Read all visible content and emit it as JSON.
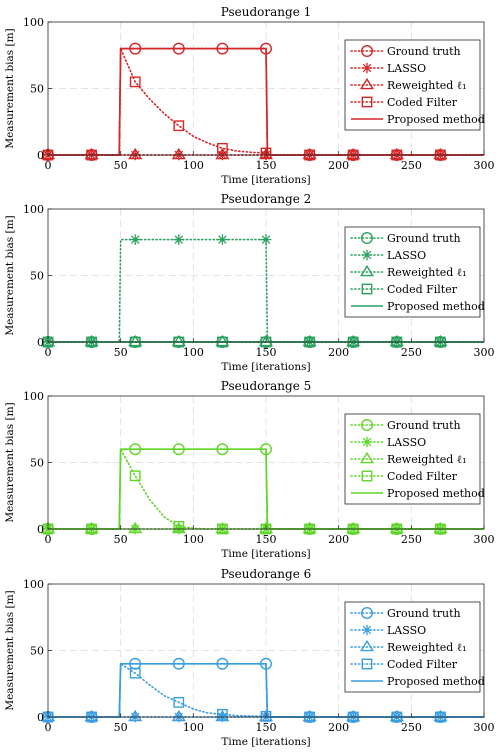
{
  "chart_data": [
    {
      "type": "line",
      "title": "Pseudorange 1",
      "xlabel": "Time [iterations]",
      "ylabel": "Measurement bias [m]",
      "xlim": [
        0,
        300
      ],
      "ylim": [
        0,
        100
      ],
      "xticks": [
        0,
        50,
        100,
        150,
        200,
        250,
        300
      ],
      "yticks": [
        0,
        50,
        100
      ],
      "grid": true,
      "legend_position": "right",
      "color": "#d62728",
      "series": [
        {
          "name": "Ground truth",
          "marker": "circle",
          "style": "dotted",
          "points": [
            [
              0,
              0
            ],
            [
              49,
              0
            ],
            [
              50,
              80
            ],
            [
              150,
              80
            ],
            [
              151,
              0
            ],
            [
              300,
              0
            ]
          ],
          "marker_x": [
            0,
            30,
            60,
            90,
            120,
            150,
            180,
            210,
            240,
            270
          ]
        },
        {
          "name": "LASSO",
          "marker": "asterisk",
          "style": "dotted",
          "points": [
            [
              0,
              0
            ],
            [
              300,
              0
            ]
          ],
          "marker_x": [
            0,
            30,
            60,
            90,
            120,
            150,
            180,
            210,
            240,
            270
          ]
        },
        {
          "name": "Reweighted ℓ₁",
          "marker": "triangle",
          "style": "dotted",
          "points": [
            [
              0,
              0
            ],
            [
              300,
              0
            ]
          ],
          "marker_x": [
            0,
            30,
            60,
            90,
            120,
            150,
            180,
            210,
            240,
            270
          ]
        },
        {
          "name": "Coded Filter",
          "marker": "square",
          "style": "dotted",
          "points": [
            [
              0,
              0
            ],
            [
              49,
              0
            ],
            [
              50,
              80
            ],
            [
              60,
              55
            ],
            [
              70,
              42
            ],
            [
              80,
              31
            ],
            [
              90,
              22
            ],
            [
              100,
              14
            ],
            [
              110,
              9
            ],
            [
              120,
              5
            ],
            [
              130,
              3
            ],
            [
              140,
              2
            ],
            [
              150,
              1.5
            ],
            [
              151,
              0
            ],
            [
              300,
              0
            ]
          ],
          "marker_x": [
            0,
            30,
            60,
            90,
            120,
            150,
            180,
            210,
            240,
            270
          ]
        },
        {
          "name": "Proposed method",
          "marker": "none",
          "style": "solid",
          "points": [
            [
              0,
              0
            ],
            [
              49,
              0
            ],
            [
              50,
              80
            ],
            [
              150,
              80
            ],
            [
              151,
              0
            ],
            [
              300,
              0
            ]
          ],
          "marker_x": []
        }
      ]
    },
    {
      "type": "line",
      "title": "Pseudorange 2",
      "xlabel": "Time [iterations]",
      "ylabel": "Measurement bias [m]",
      "xlim": [
        0,
        300
      ],
      "ylim": [
        0,
        100
      ],
      "xticks": [
        0,
        50,
        100,
        150,
        200,
        250,
        300
      ],
      "yticks": [
        0,
        50,
        100
      ],
      "grid": true,
      "legend_position": "right",
      "color": "#2ca25f",
      "series": [
        {
          "name": "Ground truth",
          "marker": "circle",
          "style": "dotted",
          "points": [
            [
              0,
              0
            ],
            [
              300,
              0
            ]
          ],
          "marker_x": [
            0,
            30,
            60,
            90,
            120,
            150,
            180,
            210,
            240,
            270
          ]
        },
        {
          "name": "LASSO",
          "marker": "asterisk",
          "style": "dotted",
          "points": [
            [
              0,
              0
            ],
            [
              49,
              0
            ],
            [
              50,
              77
            ],
            [
              150,
              77
            ],
            [
              151,
              0
            ],
            [
              300,
              0
            ]
          ],
          "marker_x": [
            0,
            30,
            60,
            90,
            120,
            150,
            180,
            210,
            240,
            270
          ]
        },
        {
          "name": "Reweighted ℓ₁",
          "marker": "triangle",
          "style": "dotted",
          "points": [
            [
              0,
              0
            ],
            [
              300,
              0
            ]
          ],
          "marker_x": [
            0,
            30,
            60,
            90,
            120,
            150,
            180,
            210,
            240,
            270
          ]
        },
        {
          "name": "Coded Filter",
          "marker": "square",
          "style": "dotted",
          "points": [
            [
              0,
              0
            ],
            [
              300,
              0
            ]
          ],
          "marker_x": [
            0,
            30,
            60,
            90,
            120,
            150,
            180,
            210,
            240,
            270
          ]
        },
        {
          "name": "Proposed method",
          "marker": "none",
          "style": "solid",
          "points": [
            [
              0,
              0
            ],
            [
              300,
              0
            ]
          ],
          "marker_x": []
        }
      ]
    },
    {
      "type": "line",
      "title": "Pseudorange 5",
      "xlabel": "Time [iterations]",
      "ylabel": "Measurement bias [m]",
      "xlim": [
        0,
        300
      ],
      "ylim": [
        0,
        100
      ],
      "xticks": [
        0,
        50,
        100,
        150,
        200,
        250,
        300
      ],
      "yticks": [
        0,
        50,
        100
      ],
      "grid": true,
      "legend_position": "right",
      "color": "#5fd629",
      "series": [
        {
          "name": "Ground truth",
          "marker": "circle",
          "style": "dotted",
          "points": [
            [
              0,
              0
            ],
            [
              49,
              0
            ],
            [
              50,
              60
            ],
            [
              150,
              60
            ],
            [
              151,
              0
            ],
            [
              300,
              0
            ]
          ],
          "marker_x": [
            0,
            30,
            60,
            90,
            120,
            150,
            180,
            210,
            240,
            270
          ]
        },
        {
          "name": "LASSO",
          "marker": "asterisk",
          "style": "dotted",
          "points": [
            [
              0,
              0
            ],
            [
              300,
              0
            ]
          ],
          "marker_x": [
            0,
            30,
            60,
            90,
            120,
            150,
            180,
            210,
            240,
            270
          ]
        },
        {
          "name": "Reweighted ℓ₁",
          "marker": "triangle",
          "style": "dotted",
          "points": [
            [
              0,
              0
            ],
            [
              300,
              0
            ]
          ],
          "marker_x": [
            0,
            30,
            60,
            90,
            120,
            150,
            180,
            210,
            240,
            270
          ]
        },
        {
          "name": "Coded Filter",
          "marker": "square",
          "style": "dotted",
          "points": [
            [
              0,
              0
            ],
            [
              49,
              0
            ],
            [
              50,
              60
            ],
            [
              60,
              40
            ],
            [
              70,
              22
            ],
            [
              80,
              9
            ],
            [
              90,
              2
            ],
            [
              100,
              0.5
            ],
            [
              110,
              0
            ],
            [
              300,
              0
            ]
          ],
          "marker_x": [
            0,
            30,
            60,
            90,
            120,
            150,
            180,
            210,
            240,
            270
          ]
        },
        {
          "name": "Proposed method",
          "marker": "none",
          "style": "solid",
          "points": [
            [
              0,
              0
            ],
            [
              49,
              0
            ],
            [
              50,
              60
            ],
            [
              150,
              60
            ],
            [
              151,
              0
            ],
            [
              300,
              0
            ]
          ],
          "marker_x": []
        }
      ]
    },
    {
      "type": "line",
      "title": "Pseudorange 6",
      "xlabel": "Time [iterations]",
      "ylabel": "Measurement bias [m]",
      "xlim": [
        0,
        300
      ],
      "ylim": [
        0,
        100
      ],
      "xticks": [
        0,
        50,
        100,
        150,
        200,
        250,
        300
      ],
      "yticks": [
        0,
        50,
        100
      ],
      "grid": true,
      "legend_position": "right",
      "color": "#3a9ee0",
      "series": [
        {
          "name": "Ground truth",
          "marker": "circle",
          "style": "dotted",
          "points": [
            [
              0,
              0
            ],
            [
              49,
              0
            ],
            [
              50,
              40
            ],
            [
              150,
              40
            ],
            [
              151,
              0
            ],
            [
              300,
              0
            ]
          ],
          "marker_x": [
            0,
            30,
            60,
            90,
            120,
            150,
            180,
            210,
            240,
            270
          ]
        },
        {
          "name": "LASSO",
          "marker": "asterisk",
          "style": "dotted",
          "points": [
            [
              0,
              0
            ],
            [
              300,
              0
            ]
          ],
          "marker_x": [
            0,
            30,
            60,
            90,
            120,
            150,
            180,
            210,
            240,
            270
          ]
        },
        {
          "name": "Reweighted ℓ₁",
          "marker": "triangle",
          "style": "dotted",
          "points": [
            [
              0,
              0
            ],
            [
              300,
              0
            ]
          ],
          "marker_x": [
            0,
            30,
            60,
            90,
            120,
            150,
            180,
            210,
            240,
            270
          ]
        },
        {
          "name": "Coded Filter",
          "marker": "square",
          "style": "dotted",
          "points": [
            [
              0,
              0
            ],
            [
              49,
              0
            ],
            [
              50,
              40
            ],
            [
              60,
              33
            ],
            [
              70,
              24
            ],
            [
              80,
              16
            ],
            [
              90,
              11
            ],
            [
              100,
              6
            ],
            [
              110,
              3
            ],
            [
              120,
              2
            ],
            [
              130,
              1
            ],
            [
              150,
              0.5
            ],
            [
              151,
              0
            ],
            [
              300,
              0
            ]
          ],
          "marker_x": [
            0,
            30,
            60,
            90,
            120,
            150,
            180,
            210,
            240,
            270
          ]
        },
        {
          "name": "Proposed method",
          "marker": "none",
          "style": "solid",
          "points": [
            [
              0,
              0
            ],
            [
              49,
              0
            ],
            [
              50,
              40
            ],
            [
              150,
              40
            ],
            [
              151,
              0
            ],
            [
              300,
              0
            ]
          ],
          "marker_x": []
        }
      ]
    }
  ]
}
